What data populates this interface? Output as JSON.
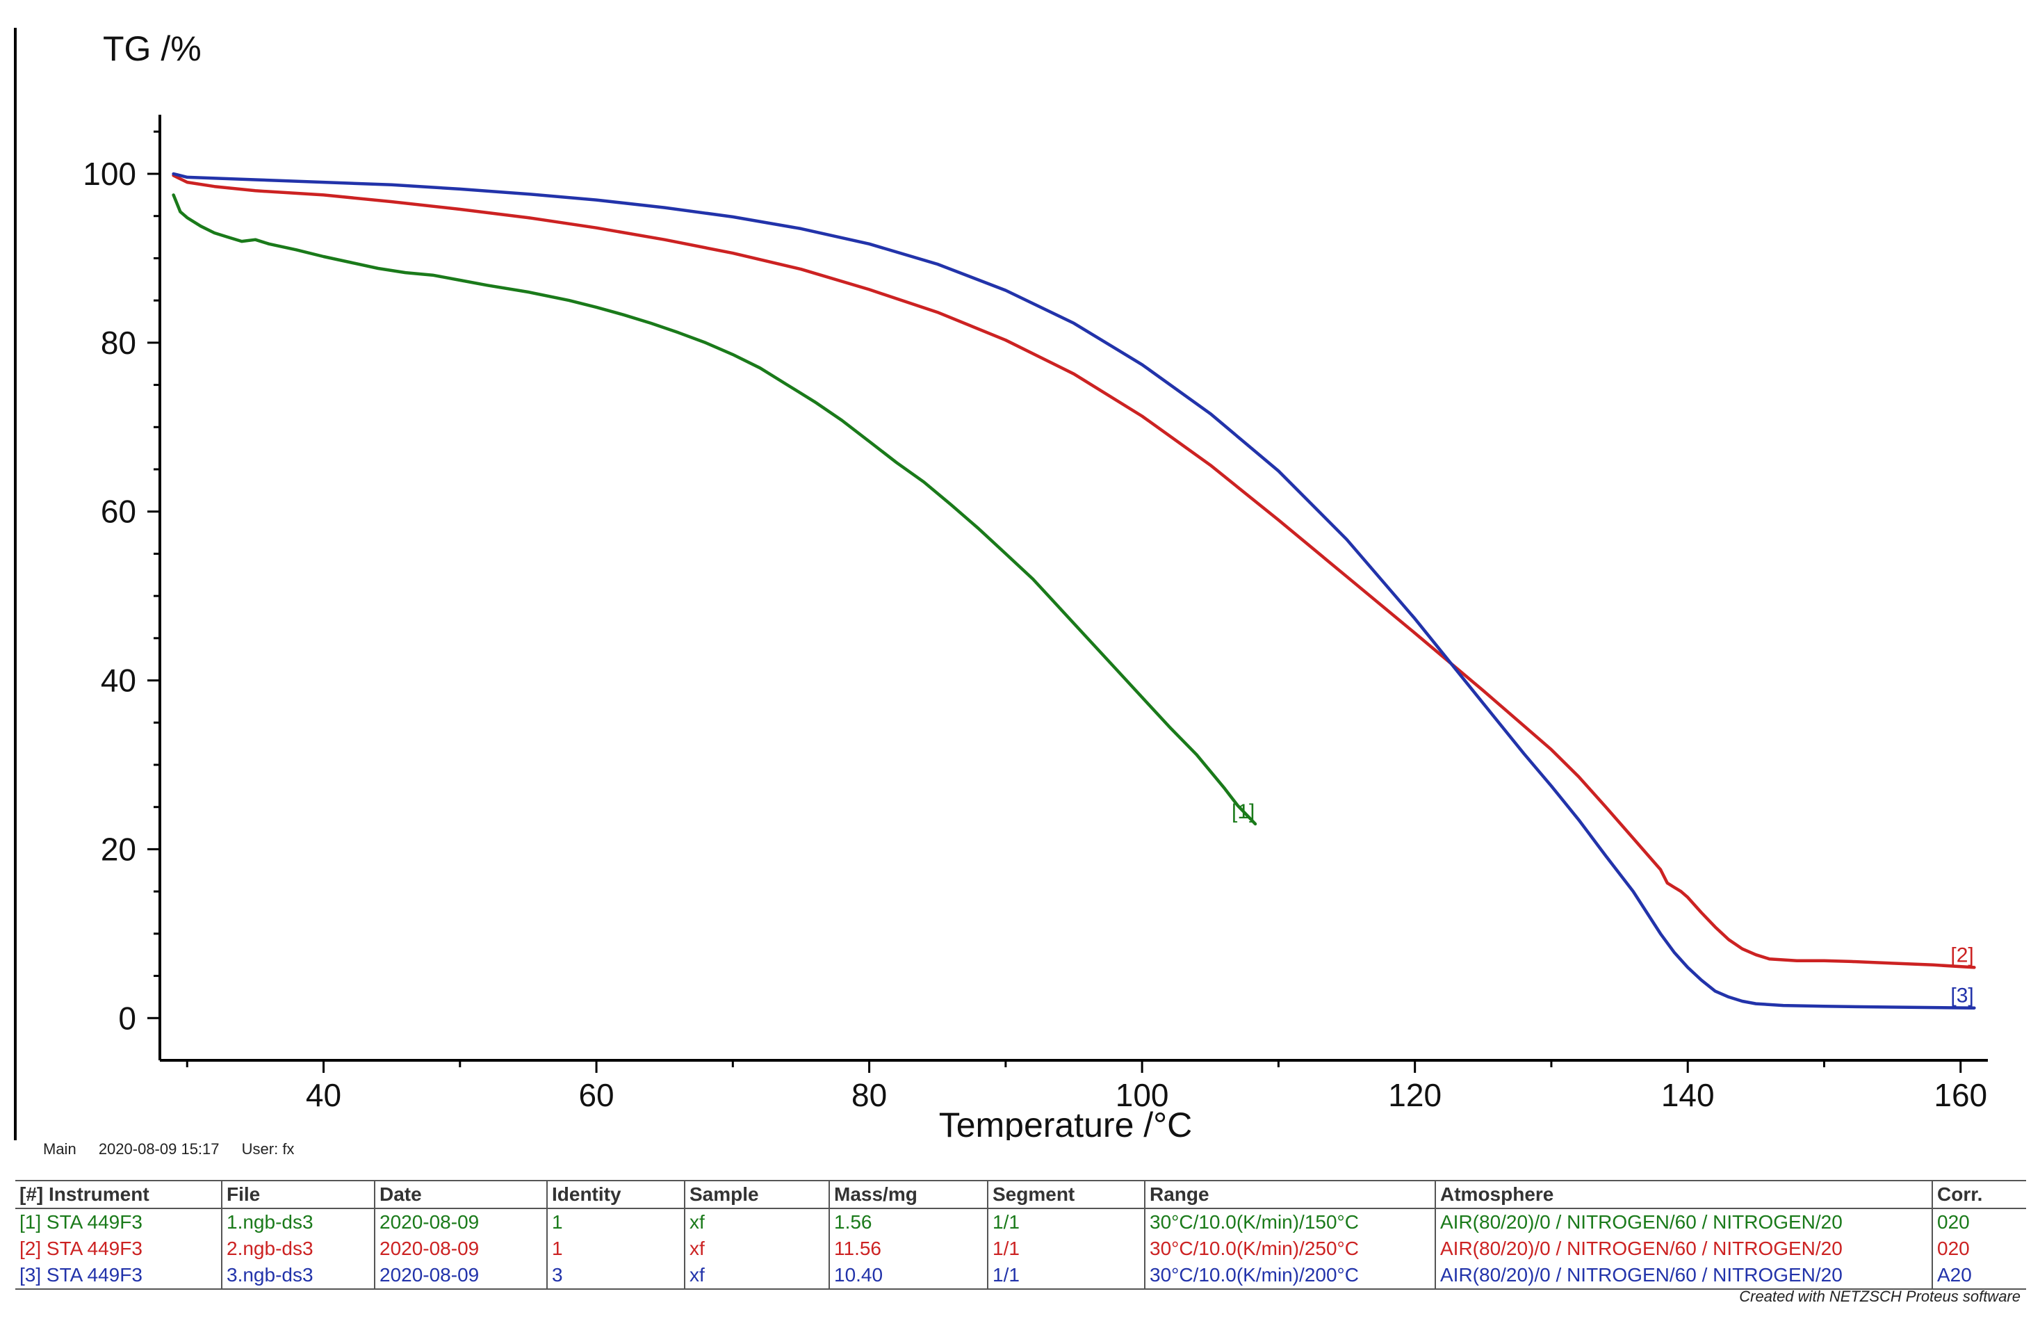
{
  "chart_data": {
    "type": "line",
    "ylabel": "TG /%",
    "xlabel": "Temperature /°C",
    "xlim": [
      28,
      162
    ],
    "ylim": [
      -5,
      107
    ],
    "xticks": [
      40,
      60,
      80,
      100,
      120,
      140,
      160
    ],
    "yticks": [
      0,
      20,
      40,
      60,
      80,
      100
    ],
    "grid": false,
    "series": [
      {
        "name": "[1]",
        "color": "#1a7a1a",
        "points": [
          [
            29.0,
            97.5
          ],
          [
            29.5,
            95.5
          ],
          [
            30,
            94.8
          ],
          [
            31,
            93.8
          ],
          [
            32,
            93.0
          ],
          [
            33,
            92.5
          ],
          [
            34,
            92.0
          ],
          [
            35,
            92.2
          ],
          [
            36,
            91.7
          ],
          [
            38,
            91.0
          ],
          [
            40,
            90.2
          ],
          [
            42,
            89.5
          ],
          [
            44,
            88.8
          ],
          [
            46,
            88.3
          ],
          [
            48,
            88.0
          ],
          [
            50,
            87.4
          ],
          [
            52,
            86.8
          ],
          [
            55,
            86.0
          ],
          [
            58,
            85.0
          ],
          [
            60,
            84.2
          ],
          [
            62,
            83.3
          ],
          [
            64,
            82.3
          ],
          [
            66,
            81.2
          ],
          [
            68,
            80.0
          ],
          [
            70,
            78.6
          ],
          [
            72,
            77.0
          ],
          [
            74,
            75.0
          ],
          [
            76,
            73.0
          ],
          [
            78,
            70.8
          ],
          [
            80,
            68.3
          ],
          [
            82,
            65.8
          ],
          [
            84,
            63.5
          ],
          [
            86,
            60.8
          ],
          [
            88,
            58.0
          ],
          [
            90,
            55.0
          ],
          [
            92,
            52.0
          ],
          [
            94,
            48.5
          ],
          [
            96,
            45.0
          ],
          [
            98,
            41.5
          ],
          [
            100,
            38.0
          ],
          [
            102,
            34.5
          ],
          [
            104,
            31.2
          ],
          [
            106,
            27.3
          ],
          [
            107,
            25.2
          ],
          [
            108.3,
            23.0
          ]
        ]
      },
      {
        "name": "[2]",
        "color": "#cc2222",
        "points": [
          [
            29.0,
            99.8
          ],
          [
            30,
            99.0
          ],
          [
            32,
            98.5
          ],
          [
            35,
            98.0
          ],
          [
            40,
            97.5
          ],
          [
            45,
            96.7
          ],
          [
            50,
            95.8
          ],
          [
            55,
            94.8
          ],
          [
            60,
            93.6
          ],
          [
            65,
            92.2
          ],
          [
            70,
            90.6
          ],
          [
            75,
            88.7
          ],
          [
            80,
            86.3
          ],
          [
            85,
            83.6
          ],
          [
            90,
            80.3
          ],
          [
            95,
            76.3
          ],
          [
            100,
            71.3
          ],
          [
            105,
            65.5
          ],
          [
            110,
            59.0
          ],
          [
            115,
            52.3
          ],
          [
            120,
            45.6
          ],
          [
            125,
            38.8
          ],
          [
            130,
            31.8
          ],
          [
            132,
            28.6
          ],
          [
            134,
            25.0
          ],
          [
            136,
            21.3
          ],
          [
            138,
            17.6
          ],
          [
            138.5,
            16.0
          ],
          [
            139,
            15.5
          ],
          [
            139.5,
            15.0
          ],
          [
            140,
            14.3
          ],
          [
            141,
            12.5
          ],
          [
            142,
            10.8
          ],
          [
            143,
            9.3
          ],
          [
            144,
            8.2
          ],
          [
            145,
            7.5
          ],
          [
            146,
            7.0
          ],
          [
            148,
            6.8
          ],
          [
            150,
            6.8
          ],
          [
            152,
            6.7
          ],
          [
            155,
            6.5
          ],
          [
            158,
            6.3
          ],
          [
            161,
            6.0
          ]
        ]
      },
      {
        "name": "[3]",
        "color": "#2233aa",
        "points": [
          [
            29.0,
            100.0
          ],
          [
            30,
            99.6
          ],
          [
            35,
            99.3
          ],
          [
            40,
            99.0
          ],
          [
            45,
            98.7
          ],
          [
            50,
            98.2
          ],
          [
            55,
            97.6
          ],
          [
            60,
            96.9
          ],
          [
            65,
            96.0
          ],
          [
            70,
            94.9
          ],
          [
            75,
            93.5
          ],
          [
            80,
            91.7
          ],
          [
            85,
            89.3
          ],
          [
            90,
            86.2
          ],
          [
            95,
            82.3
          ],
          [
            100,
            77.4
          ],
          [
            105,
            71.6
          ],
          [
            110,
            64.8
          ],
          [
            115,
            56.7
          ],
          [
            120,
            47.3
          ],
          [
            125,
            37.3
          ],
          [
            128,
            31.3
          ],
          [
            130,
            27.5
          ],
          [
            132,
            23.5
          ],
          [
            134,
            19.2
          ],
          [
            136,
            15.0
          ],
          [
            138,
            10.0
          ],
          [
            139,
            7.8
          ],
          [
            140,
            6.0
          ],
          [
            141,
            4.5
          ],
          [
            142,
            3.2
          ],
          [
            143,
            2.5
          ],
          [
            144,
            2.0
          ],
          [
            145,
            1.7
          ],
          [
            147,
            1.5
          ],
          [
            150,
            1.4
          ],
          [
            155,
            1.3
          ],
          [
            161,
            1.2
          ]
        ]
      }
    ]
  },
  "footer": {
    "main_label": "Main",
    "timestamp": "2020-08-09 15:17",
    "user": "User: fx"
  },
  "table": {
    "headers": [
      "[#] Instrument",
      "File",
      "Date",
      "Identity",
      "Sample",
      "Mass/mg",
      "Segment",
      "Range",
      "Atmosphere",
      "Corr."
    ],
    "rows": [
      [
        "[1] STA 449F3",
        "1.ngb-ds3",
        "2020-08-09",
        "1",
        "xf",
        "1.56",
        "1/1",
        "30°C/10.0(K/min)/150°C",
        "AIR(80/20)/0 / NITROGEN/60 / NITROGEN/20",
        "020"
      ],
      [
        "[2] STA 449F3",
        "2.ngb-ds3",
        "2020-08-09",
        "1",
        "xf",
        "11.56",
        "1/1",
        "30°C/10.0(K/min)/250°C",
        "AIR(80/20)/0 / NITROGEN/60 / NITROGEN/20",
        "020"
      ],
      [
        "[3] STA 449F3",
        "3.ngb-ds3",
        "2020-08-09",
        "3",
        "xf",
        "10.40",
        "1/1",
        "30°C/10.0(K/min)/200°C",
        "AIR(80/20)/0 / NITROGEN/60 / NITROGEN/20",
        "A20"
      ]
    ],
    "row_colors": [
      "#1a7a1a",
      "#cc2222",
      "#2233aa"
    ]
  },
  "credit": "Created with NETZSCH Proteus software"
}
